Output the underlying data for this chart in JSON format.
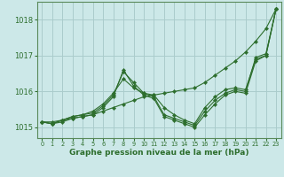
{
  "xlabel": "Graphe pression niveau de la mer (hPa)",
  "background_color": "#cce8e8",
  "grid_color": "#aacccc",
  "line_color": "#2d6e2d",
  "spine_color": "#5a8a5a",
  "xlim": [
    -0.5,
    23.5
  ],
  "ylim": [
    1014.7,
    1018.5
  ],
  "yticks": [
    1015,
    1016,
    1017,
    1018
  ],
  "xticks": [
    0,
    1,
    2,
    3,
    4,
    5,
    6,
    7,
    8,
    9,
    10,
    11,
    12,
    13,
    14,
    15,
    16,
    17,
    18,
    19,
    20,
    21,
    22,
    23
  ],
  "series": [
    {
      "x": [
        0,
        1,
        2,
        3,
        4,
        5,
        6,
        7,
        8,
        9,
        10,
        11,
        12,
        13,
        14,
        15,
        16,
        17,
        18,
        19,
        20,
        21,
        22,
        23
      ],
      "y": [
        1015.15,
        1015.15,
        1015.2,
        1015.25,
        1015.3,
        1015.35,
        1015.45,
        1015.55,
        1015.65,
        1015.75,
        1015.85,
        1015.9,
        1015.95,
        1016.0,
        1016.05,
        1016.1,
        1016.25,
        1016.45,
        1016.65,
        1016.85,
        1017.1,
        1017.4,
        1017.75,
        1018.3
      ]
    },
    {
      "x": [
        0,
        1,
        2,
        3,
        4,
        5,
        6,
        7,
        8,
        9,
        10,
        11,
        12,
        13,
        14,
        15,
        16,
        17,
        18,
        19,
        20,
        21,
        22,
        23
      ],
      "y": [
        1015.15,
        1015.1,
        1015.2,
        1015.3,
        1015.35,
        1015.4,
        1015.6,
        1015.9,
        1016.55,
        1016.25,
        1015.95,
        1015.85,
        1015.35,
        1015.25,
        1015.15,
        1015.05,
        1015.45,
        1015.75,
        1015.95,
        1016.05,
        1016.0,
        1016.95,
        1017.05,
        1018.3
      ]
    },
    {
      "x": [
        0,
        1,
        2,
        3,
        4,
        5,
        6,
        7,
        8,
        9,
        10,
        11,
        12,
        13,
        14,
        15,
        16,
        17,
        18,
        19,
        20,
        21,
        22,
        23
      ],
      "y": [
        1015.15,
        1015.1,
        1015.15,
        1015.25,
        1015.3,
        1015.35,
        1015.55,
        1015.85,
        1016.6,
        1016.15,
        1015.9,
        1015.8,
        1015.3,
        1015.2,
        1015.1,
        1015.0,
        1015.35,
        1015.65,
        1015.9,
        1016.0,
        1015.95,
        1016.85,
        1017.0,
        1018.3
      ]
    },
    {
      "x": [
        0,
        1,
        2,
        3,
        4,
        5,
        6,
        7,
        8,
        9,
        10,
        11,
        12,
        13,
        14,
        15,
        16,
        17,
        18,
        19,
        20,
        21,
        22,
        23
      ],
      "y": [
        1015.15,
        1015.1,
        1015.2,
        1015.3,
        1015.35,
        1015.45,
        1015.65,
        1015.95,
        1016.35,
        1016.1,
        1015.95,
        1015.9,
        1015.55,
        1015.35,
        1015.2,
        1015.1,
        1015.55,
        1015.85,
        1016.05,
        1016.1,
        1016.05,
        1016.9,
        1017.0,
        1018.3
      ]
    }
  ]
}
